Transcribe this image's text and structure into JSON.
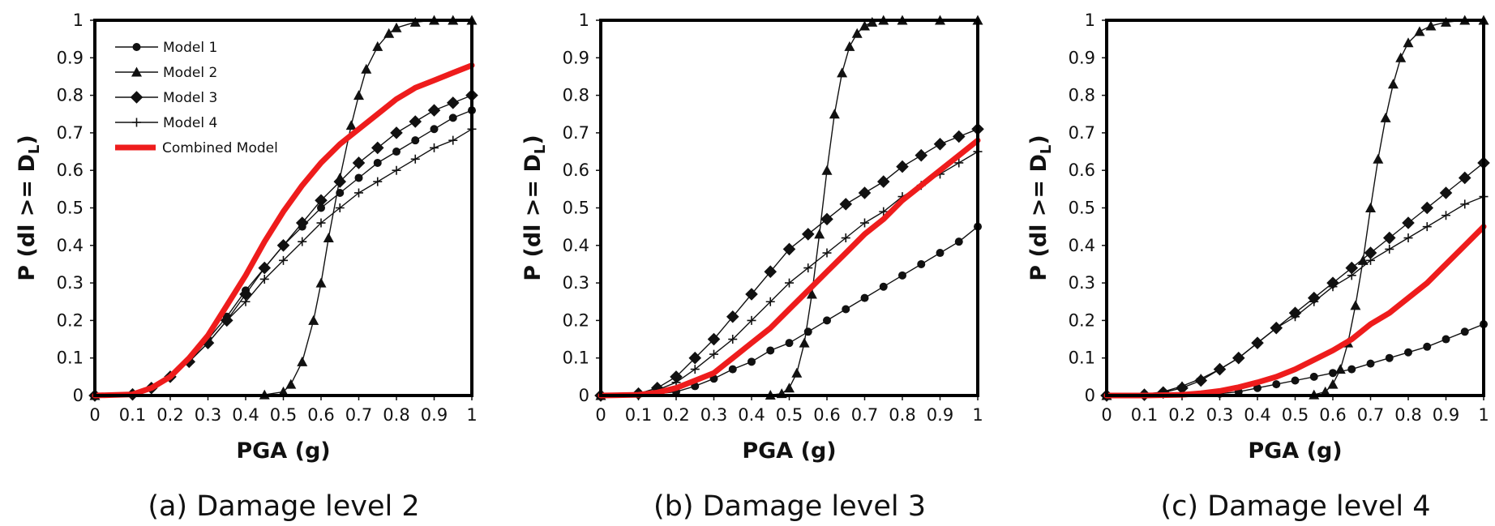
{
  "figure": {
    "panels": [
      "(a) Damage level 2",
      "(b) Damage level 3",
      "(c) Damage level 4"
    ]
  },
  "chart_data": [
    {
      "type": "line",
      "caption": "(a) Damage level 2",
      "xlabel": "PGA (g)",
      "ylabel": "P (dl >= D",
      "ylabel_sub": "L",
      "ylabel_end": ")",
      "xlim": [
        0,
        1
      ],
      "ylim": [
        0,
        1
      ],
      "xticks": [
        "0",
        "0.1",
        "0.2",
        "0.3",
        "0.4",
        "0.5",
        "0.6",
        "0.7",
        "0.8",
        "0.9",
        "1"
      ],
      "yticks": [
        "0",
        "0.1",
        "0.2",
        "0.3",
        "0.4",
        "0.5",
        "0.6",
        "0.7",
        "0.8",
        "0.9",
        "1"
      ],
      "grid": false,
      "legend": {
        "placement": "top-left",
        "entries": [
          {
            "name": "Model 1",
            "marker": "circle"
          },
          {
            "name": "Model 2",
            "marker": "triangle"
          },
          {
            "name": "Model 3",
            "marker": "square"
          },
          {
            "name": "Model 4",
            "marker": "plus"
          },
          {
            "name": "Combined Model",
            "marker": "none"
          }
        ]
      },
      "series": [
        {
          "name": "Model 1",
          "marker": "circle",
          "color": "#111111",
          "x": [
            0,
            0.1,
            0.15,
            0.2,
            0.25,
            0.3,
            0.35,
            0.4,
            0.45,
            0.5,
            0.55,
            0.6,
            0.65,
            0.7,
            0.75,
            0.8,
            0.85,
            0.9,
            0.95,
            1.0
          ],
          "y": [
            0,
            0.003,
            0.02,
            0.05,
            0.09,
            0.15,
            0.21,
            0.28,
            0.34,
            0.4,
            0.45,
            0.5,
            0.54,
            0.58,
            0.62,
            0.65,
            0.68,
            0.71,
            0.74,
            0.76
          ]
        },
        {
          "name": "Model 2",
          "marker": "triangle",
          "color": "#111111",
          "x": [
            0,
            0.1,
            0.2,
            0.3,
            0.4,
            0.45,
            0.5,
            0.52,
            0.55,
            0.58,
            0.6,
            0.62,
            0.65,
            0.68,
            0.7,
            0.72,
            0.75,
            0.78,
            0.8,
            0.85,
            0.9,
            0.95,
            1.0
          ],
          "y": [
            0,
            0,
            0,
            0,
            0,
            0.002,
            0.01,
            0.03,
            0.09,
            0.2,
            0.3,
            0.42,
            0.58,
            0.72,
            0.8,
            0.87,
            0.93,
            0.965,
            0.98,
            0.995,
            1,
            1,
            1
          ]
        },
        {
          "name": "Model 3",
          "marker": "square",
          "color": "#111111",
          "x": [
            0,
            0.1,
            0.15,
            0.2,
            0.25,
            0.3,
            0.35,
            0.4,
            0.45,
            0.5,
            0.55,
            0.6,
            0.65,
            0.7,
            0.75,
            0.8,
            0.85,
            0.9,
            0.95,
            1.0
          ],
          "y": [
            0,
            0.003,
            0.02,
            0.05,
            0.09,
            0.14,
            0.2,
            0.27,
            0.34,
            0.4,
            0.46,
            0.52,
            0.57,
            0.62,
            0.66,
            0.7,
            0.73,
            0.76,
            0.78,
            0.8
          ]
        },
        {
          "name": "Model 4",
          "marker": "plus",
          "color": "#111111",
          "x": [
            0,
            0.1,
            0.15,
            0.2,
            0.25,
            0.3,
            0.35,
            0.4,
            0.45,
            0.5,
            0.55,
            0.6,
            0.65,
            0.7,
            0.75,
            0.8,
            0.85,
            0.9,
            0.95,
            1.0
          ],
          "y": [
            0,
            0.004,
            0.02,
            0.05,
            0.09,
            0.14,
            0.2,
            0.25,
            0.31,
            0.36,
            0.41,
            0.46,
            0.5,
            0.54,
            0.57,
            0.6,
            0.63,
            0.66,
            0.68,
            0.71
          ]
        },
        {
          "name": "Combined Model",
          "marker": "none",
          "color": "#ee1c1c",
          "x": [
            0,
            0.1,
            0.15,
            0.2,
            0.25,
            0.3,
            0.35,
            0.4,
            0.45,
            0.5,
            0.55,
            0.6,
            0.65,
            0.7,
            0.75,
            0.8,
            0.85,
            0.9,
            0.95,
            1.0
          ],
          "y": [
            0,
            0.003,
            0.02,
            0.05,
            0.1,
            0.16,
            0.24,
            0.32,
            0.41,
            0.49,
            0.56,
            0.62,
            0.67,
            0.71,
            0.75,
            0.79,
            0.82,
            0.84,
            0.86,
            0.88
          ]
        }
      ]
    },
    {
      "type": "line",
      "caption": "(b) Damage level 3",
      "xlabel": "PGA (g)",
      "ylabel": "P (dl >= D",
      "ylabel_sub": "L",
      "ylabel_end": ")",
      "xlim": [
        0,
        1
      ],
      "ylim": [
        0,
        1
      ],
      "xticks": [
        "0",
        "0.1",
        "0.2",
        "0.3",
        "0.4",
        "0.5",
        "0.6",
        "0.7",
        "0.8",
        "0.9",
        "1"
      ],
      "yticks": [
        "0",
        "0.1",
        "0.2",
        "0.3",
        "0.4",
        "0.5",
        "0.6",
        "0.7",
        "0.8",
        "0.9",
        "1"
      ],
      "grid": false,
      "series": [
        {
          "name": "Model 1",
          "marker": "circle",
          "color": "#111111",
          "x": [
            0,
            0.1,
            0.2,
            0.25,
            0.3,
            0.35,
            0.4,
            0.45,
            0.5,
            0.55,
            0.6,
            0.65,
            0.7,
            0.75,
            0.8,
            0.85,
            0.9,
            0.95,
            1.0
          ],
          "y": [
            0,
            0,
            0.01,
            0.025,
            0.045,
            0.07,
            0.09,
            0.12,
            0.14,
            0.17,
            0.2,
            0.23,
            0.26,
            0.29,
            0.32,
            0.35,
            0.38,
            0.41,
            0.45
          ]
        },
        {
          "name": "Model 2",
          "marker": "triangle",
          "color": "#111111",
          "x": [
            0,
            0.1,
            0.2,
            0.3,
            0.4,
            0.45,
            0.48,
            0.5,
            0.52,
            0.54,
            0.56,
            0.58,
            0.6,
            0.62,
            0.64,
            0.66,
            0.68,
            0.7,
            0.72,
            0.75,
            0.8,
            0.9,
            1.0
          ],
          "y": [
            0,
            0,
            0,
            0,
            0,
            0.001,
            0.005,
            0.02,
            0.06,
            0.14,
            0.27,
            0.43,
            0.6,
            0.75,
            0.86,
            0.93,
            0.965,
            0.985,
            0.995,
            1,
            1,
            1,
            1
          ]
        },
        {
          "name": "Model 3",
          "marker": "square",
          "color": "#111111",
          "x": [
            0,
            0.1,
            0.15,
            0.2,
            0.25,
            0.3,
            0.35,
            0.4,
            0.45,
            0.5,
            0.55,
            0.6,
            0.65,
            0.7,
            0.75,
            0.8,
            0.85,
            0.9,
            0.95,
            1.0
          ],
          "y": [
            0,
            0.005,
            0.02,
            0.05,
            0.1,
            0.15,
            0.21,
            0.27,
            0.33,
            0.39,
            0.43,
            0.47,
            0.51,
            0.54,
            0.57,
            0.61,
            0.64,
            0.67,
            0.69,
            0.71
          ]
        },
        {
          "name": "Model 4",
          "marker": "plus",
          "color": "#111111",
          "x": [
            0,
            0.1,
            0.15,
            0.2,
            0.25,
            0.3,
            0.35,
            0.4,
            0.45,
            0.5,
            0.55,
            0.6,
            0.65,
            0.7,
            0.75,
            0.8,
            0.85,
            0.9,
            0.95,
            1.0
          ],
          "y": [
            0,
            0.004,
            0.015,
            0.035,
            0.07,
            0.11,
            0.15,
            0.2,
            0.25,
            0.3,
            0.34,
            0.38,
            0.42,
            0.46,
            0.49,
            0.53,
            0.56,
            0.59,
            0.62,
            0.65
          ]
        },
        {
          "name": "Combined Model",
          "marker": "none",
          "color": "#ee1c1c",
          "x": [
            0,
            0.1,
            0.15,
            0.2,
            0.25,
            0.3,
            0.35,
            0.4,
            0.45,
            0.5,
            0.55,
            0.6,
            0.65,
            0.7,
            0.75,
            0.8,
            0.85,
            0.9,
            0.95,
            1.0
          ],
          "y": [
            0,
            0.002,
            0.008,
            0.02,
            0.04,
            0.06,
            0.1,
            0.14,
            0.18,
            0.23,
            0.28,
            0.33,
            0.38,
            0.43,
            0.47,
            0.52,
            0.56,
            0.6,
            0.64,
            0.68
          ]
        }
      ]
    },
    {
      "type": "line",
      "caption": "(c) Damage level 4",
      "xlabel": "PGA (g)",
      "ylabel": "P (dl >= D",
      "ylabel_sub": "L",
      "ylabel_end": ")",
      "xlim": [
        0,
        1
      ],
      "ylim": [
        0,
        1
      ],
      "xticks": [
        "0",
        "0.1",
        "0.2",
        "0.3",
        "0.4",
        "0.5",
        "0.6",
        "0.7",
        "0.8",
        "0.9",
        "1"
      ],
      "yticks": [
        "0",
        "0.1",
        "0.2",
        "0.3",
        "0.4",
        "0.5",
        "0.6",
        "0.7",
        "0.8",
        "0.9",
        "1"
      ],
      "grid": false,
      "series": [
        {
          "name": "Model 1",
          "marker": "circle",
          "color": "#111111",
          "x": [
            0,
            0.2,
            0.3,
            0.35,
            0.4,
            0.45,
            0.5,
            0.55,
            0.6,
            0.65,
            0.7,
            0.75,
            0.8,
            0.85,
            0.9,
            0.95,
            1.0
          ],
          "y": [
            0,
            0,
            0.005,
            0.01,
            0.02,
            0.03,
            0.04,
            0.05,
            0.06,
            0.07,
            0.085,
            0.1,
            0.115,
            0.13,
            0.15,
            0.17,
            0.19
          ]
        },
        {
          "name": "Model 2",
          "marker": "triangle",
          "color": "#111111",
          "x": [
            0,
            0.2,
            0.4,
            0.5,
            0.55,
            0.58,
            0.6,
            0.62,
            0.64,
            0.66,
            0.68,
            0.7,
            0.72,
            0.74,
            0.76,
            0.78,
            0.8,
            0.83,
            0.86,
            0.9,
            0.95,
            1.0
          ],
          "y": [
            0,
            0,
            0,
            0,
            0.002,
            0.01,
            0.03,
            0.07,
            0.14,
            0.24,
            0.36,
            0.5,
            0.63,
            0.74,
            0.83,
            0.9,
            0.94,
            0.97,
            0.985,
            0.995,
            1,
            1
          ]
        },
        {
          "name": "Model 3",
          "marker": "square",
          "color": "#111111",
          "x": [
            0,
            0.1,
            0.15,
            0.2,
            0.25,
            0.3,
            0.35,
            0.4,
            0.45,
            0.5,
            0.55,
            0.6,
            0.65,
            0.7,
            0.75,
            0.8,
            0.85,
            0.9,
            0.95,
            1.0
          ],
          "y": [
            0,
            0.002,
            0.008,
            0.02,
            0.04,
            0.07,
            0.1,
            0.14,
            0.18,
            0.22,
            0.26,
            0.3,
            0.34,
            0.38,
            0.42,
            0.46,
            0.5,
            0.54,
            0.58,
            0.62
          ]
        },
        {
          "name": "Model 4",
          "marker": "plus",
          "color": "#111111",
          "x": [
            0,
            0.1,
            0.15,
            0.2,
            0.25,
            0.3,
            0.35,
            0.4,
            0.45,
            0.5,
            0.55,
            0.6,
            0.65,
            0.7,
            0.75,
            0.8,
            0.85,
            0.9,
            0.95,
            1.0
          ],
          "y": [
            0,
            0.003,
            0.01,
            0.025,
            0.045,
            0.07,
            0.1,
            0.14,
            0.18,
            0.21,
            0.25,
            0.29,
            0.32,
            0.36,
            0.39,
            0.42,
            0.45,
            0.48,
            0.51,
            0.53
          ]
        },
        {
          "name": "Combined Model",
          "marker": "none",
          "color": "#ee1c1c",
          "x": [
            0,
            0.1,
            0.2,
            0.25,
            0.3,
            0.35,
            0.4,
            0.45,
            0.5,
            0.55,
            0.6,
            0.65,
            0.7,
            0.75,
            0.8,
            0.85,
            0.9,
            0.95,
            1.0
          ],
          "y": [
            0,
            0,
            0.002,
            0.006,
            0.012,
            0.022,
            0.035,
            0.05,
            0.07,
            0.095,
            0.12,
            0.15,
            0.19,
            0.22,
            0.26,
            0.3,
            0.35,
            0.4,
            0.45
          ]
        }
      ]
    }
  ]
}
